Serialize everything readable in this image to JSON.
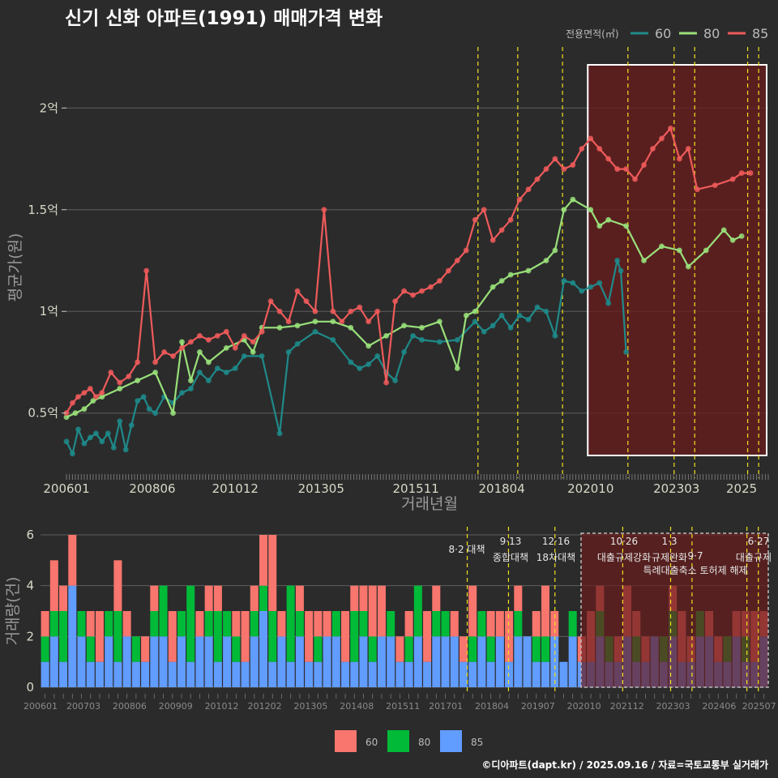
{
  "header": {
    "title": "신기 신화 아파트(1991) 매매가격 변화",
    "credit": "©디아파트(dapt.kr) / 2025.09.16 / 자료=국토교통부 실거래가"
  },
  "colors": {
    "s60_line": "#1f8a8a",
    "s80_line": "#99e07a",
    "s85_line": "#ee5a5a",
    "b60": "#f8766d",
    "b80": "#00ba38",
    "b85": "#619cff",
    "policy_line": "#f0e020",
    "shade": "#6a1c1c"
  },
  "chart_data": [
    {
      "type": "line",
      "title": "신기 신화 아파트(1991) 매매가격 변화",
      "xlabel": "거래년월",
      "ylabel": "평균가(원)",
      "xlim": [
        2006.0,
        2025.75
      ],
      "ylim": [
        0.18,
        2.3
      ],
      "y_ticks": [
        0.5,
        1.0,
        1.5,
        2.0
      ],
      "y_tick_labels": [
        "0.5억",
        "1억",
        "1.5억",
        "2억"
      ],
      "x_ticks": [
        2006.0,
        2008.417,
        2010.75,
        2013.167,
        2015.833,
        2018.25,
        2020.75,
        2023.167,
        2025.0
      ],
      "x_tick_labels": [
        "200601",
        "200806",
        "201012",
        "201305",
        "201511",
        "201804",
        "202010",
        "202303",
        "2025"
      ],
      "legend_title": "전용면적(㎡)",
      "series": [
        {
          "name": "60",
          "x": [
            2006.0,
            2006.17,
            2006.33,
            2006.5,
            2006.67,
            2006.83,
            2007.0,
            2007.17,
            2007.33,
            2007.5,
            2007.67,
            2007.83,
            2008.0,
            2008.17,
            2008.33,
            2008.5,
            2008.75,
            2009.0,
            2009.25,
            2009.5,
            2009.75,
            2010.0,
            2010.25,
            2010.5,
            2010.75,
            2011.0,
            2011.5,
            2012.0,
            2012.25,
            2012.5,
            2013.0,
            2013.5,
            2014.0,
            2014.25,
            2014.5,
            2014.75,
            2015.0,
            2015.25,
            2015.5,
            2015.75,
            2016.0,
            2016.5,
            2017.0,
            2017.5,
            2017.75,
            2018.0,
            2018.25,
            2018.5,
            2018.75,
            2019.0,
            2019.25,
            2019.5,
            2019.75,
            2020.0,
            2020.25,
            2020.5,
            2020.75,
            2021.0,
            2021.25,
            2021.5,
            2021.6,
            2021.75
          ],
          "values": [
            0.36,
            0.3,
            0.42,
            0.35,
            0.38,
            0.4,
            0.36,
            0.4,
            0.33,
            0.46,
            0.32,
            0.44,
            0.56,
            0.58,
            0.52,
            0.5,
            0.58,
            0.55,
            0.6,
            0.62,
            0.7,
            0.66,
            0.72,
            0.7,
            0.72,
            0.78,
            0.78,
            0.4,
            0.8,
            0.84,
            0.9,
            0.86,
            0.75,
            0.72,
            0.74,
            0.78,
            0.7,
            0.66,
            0.8,
            0.88,
            0.86,
            0.85,
            0.86,
            0.95,
            0.9,
            0.93,
            0.98,
            0.92,
            0.98,
            0.96,
            1.02,
            1.0,
            0.88,
            1.15,
            1.14,
            1.1,
            1.12,
            1.14,
            1.04,
            1.25,
            1.2,
            0.8
          ]
        },
        {
          "name": "80",
          "x": [
            2006.0,
            2006.25,
            2006.5,
            2006.75,
            2007.0,
            2007.5,
            2008.0,
            2008.5,
            2009.0,
            2009.25,
            2009.5,
            2009.75,
            2010.0,
            2010.5,
            2011.0,
            2011.25,
            2011.5,
            2012.0,
            2012.5,
            2013.0,
            2013.5,
            2014.0,
            2014.5,
            2015.0,
            2015.5,
            2016.0,
            2016.5,
            2017.0,
            2017.25,
            2017.5,
            2018.0,
            2018.25,
            2018.5,
            2019.0,
            2019.5,
            2019.75,
            2020.0,
            2020.25,
            2020.75,
            2021.0,
            2021.25,
            2021.75,
            2022.25,
            2022.75,
            2023.25,
            2023.5,
            2024.0,
            2024.5,
            2024.75,
            2025.0
          ],
          "values": [
            0.48,
            0.5,
            0.52,
            0.56,
            0.58,
            0.62,
            0.66,
            0.7,
            0.5,
            0.85,
            0.66,
            0.8,
            0.75,
            0.82,
            0.86,
            0.8,
            0.92,
            0.92,
            0.93,
            0.95,
            0.95,
            0.92,
            0.83,
            0.88,
            0.93,
            0.92,
            0.95,
            0.72,
            0.98,
            1.0,
            1.12,
            1.15,
            1.18,
            1.2,
            1.25,
            1.3,
            1.5,
            1.55,
            1.5,
            1.42,
            1.45,
            1.42,
            1.25,
            1.32,
            1.3,
            1.22,
            1.3,
            1.4,
            1.35,
            1.37
          ]
        },
        {
          "name": "85",
          "x": [
            2006.0,
            2006.17,
            2006.33,
            2006.5,
            2006.67,
            2006.83,
            2007.0,
            2007.25,
            2007.5,
            2007.75,
            2008.0,
            2008.25,
            2008.5,
            2008.75,
            2009.0,
            2009.25,
            2009.5,
            2009.75,
            2010.0,
            2010.25,
            2010.5,
            2010.75,
            2011.0,
            2011.25,
            2011.5,
            2011.75,
            2012.0,
            2012.25,
            2012.5,
            2012.75,
            2013.0,
            2013.25,
            2013.5,
            2013.75,
            2014.0,
            2014.25,
            2014.5,
            2014.75,
            2015.0,
            2015.25,
            2015.5,
            2015.75,
            2016.0,
            2016.25,
            2016.5,
            2016.75,
            2017.0,
            2017.25,
            2017.5,
            2017.75,
            2018.0,
            2018.25,
            2018.5,
            2018.75,
            2019.0,
            2019.25,
            2019.5,
            2019.75,
            2020.0,
            2020.25,
            2020.5,
            2020.75,
            2021.0,
            2021.25,
            2021.5,
            2021.75,
            2022.0,
            2022.25,
            2022.5,
            2022.75,
            2023.0,
            2023.25,
            2023.5,
            2023.75,
            2024.25,
            2024.75,
            2025.0,
            2025.25
          ],
          "values": [
            0.5,
            0.55,
            0.58,
            0.6,
            0.62,
            0.58,
            0.6,
            0.7,
            0.65,
            0.68,
            0.75,
            1.2,
            0.75,
            0.8,
            0.78,
            0.82,
            0.85,
            0.88,
            0.86,
            0.88,
            0.9,
            0.82,
            0.88,
            0.85,
            0.9,
            1.05,
            1.0,
            0.95,
            1.1,
            1.05,
            1.0,
            1.5,
            1.0,
            0.95,
            1.0,
            1.02,
            0.95,
            1.0,
            0.65,
            1.05,
            1.1,
            1.08,
            1.1,
            1.12,
            1.15,
            1.2,
            1.25,
            1.3,
            1.45,
            1.5,
            1.35,
            1.4,
            1.45,
            1.55,
            1.6,
            1.65,
            1.7,
            1.75,
            1.7,
            1.72,
            1.8,
            1.85,
            1.8,
            1.75,
            1.7,
            1.7,
            1.65,
            1.72,
            1.8,
            1.85,
            1.9,
            1.75,
            1.8,
            1.6,
            1.62,
            1.65,
            1.68,
            1.68
          ]
        }
      ],
      "policy_lines": [
        2017.58,
        2018.7,
        2019.96,
        2021.8,
        2023.1,
        2023.68,
        2025.17,
        2025.48
      ],
      "highlight_range": [
        2020.67,
        2025.75
      ]
    },
    {
      "type": "bar",
      "stacked": true,
      "ylabel": "거래량(건)",
      "ylim": [
        0,
        6
      ],
      "y_ticks": [
        0,
        2,
        4,
        6
      ],
      "y_tick_labels": [
        "0",
        "2",
        "4",
        "6"
      ],
      "x_tick_labels": [
        "200601",
        "200703",
        "200806",
        "200909",
        "201012",
        "201202",
        "201305",
        "201408",
        "201511",
        "201701",
        "201804",
        "201907",
        "202010",
        "202112",
        "202303",
        "202406",
        "202507"
      ],
      "x_tick_positions": [
        2006.0,
        2007.167,
        2008.417,
        2009.667,
        2010.917,
        2012.083,
        2013.333,
        2014.583,
        2015.833,
        2017.0,
        2018.25,
        2019.5,
        2020.75,
        2021.917,
        2023.167,
        2024.417,
        2025.5
      ],
      "legend": [
        "60",
        "80",
        "85"
      ],
      "series": [
        {
          "name": "85",
          "values": [
            1,
            2,
            1,
            4,
            2,
            1,
            1,
            2,
            1,
            2,
            1,
            1,
            2,
            2,
            1,
            2,
            1,
            2,
            2,
            1,
            2,
            1,
            1,
            2,
            3,
            1,
            2,
            1,
            2,
            1,
            1,
            2,
            2,
            1,
            1,
            2,
            1,
            2,
            2,
            1,
            1,
            2,
            1,
            2,
            2,
            2,
            1,
            1,
            2,
            1,
            2,
            1,
            2,
            2,
            1,
            1,
            2,
            1,
            2,
            1,
            1,
            2,
            1,
            1,
            2,
            1,
            1,
            2,
            1,
            2,
            1,
            1,
            2,
            2,
            1,
            1,
            2,
            1,
            1,
            2
          ]
        },
        {
          "name": "80",
          "values": [
            1,
            1,
            2,
            0,
            1,
            1,
            0,
            1,
            2,
            0,
            1,
            0,
            1,
            2,
            0,
            1,
            3,
            0,
            1,
            2,
            1,
            1,
            0,
            1,
            1,
            2,
            0,
            3,
            1,
            0,
            1,
            0,
            1,
            0,
            2,
            1,
            1,
            0,
            1,
            0,
            1,
            2,
            0,
            1,
            1,
            0,
            0,
            1,
            1,
            1,
            0,
            0,
            1,
            0,
            1,
            1,
            0,
            0,
            1,
            0,
            0,
            1,
            1,
            0,
            0,
            1,
            0,
            0,
            1,
            1,
            0,
            0,
            1,
            0,
            0,
            1,
            0,
            1,
            0,
            0
          ]
        },
        {
          "name": "60",
          "values": [
            1,
            2,
            1,
            2,
            0,
            1,
            2,
            0,
            2,
            1,
            0,
            1,
            1,
            0,
            2,
            0,
            0,
            1,
            1,
            1,
            0,
            1,
            2,
            1,
            2,
            3,
            1,
            0,
            1,
            2,
            1,
            1,
            0,
            2,
            1,
            1,
            2,
            2,
            0,
            1,
            1,
            0,
            2,
            1,
            0,
            1,
            1,
            2,
            0,
            1,
            1,
            2,
            1,
            0,
            1,
            2,
            1,
            0,
            0,
            1,
            2,
            1,
            0,
            1,
            2,
            1,
            1,
            0,
            0,
            1,
            2,
            1,
            0,
            1,
            1,
            0,
            1,
            1,
            2,
            1
          ]
        }
      ],
      "annotations": [
        {
          "date": "8·2 대책",
          "label": ""
        },
        {
          "date": "9·13",
          "label": "종합대책"
        },
        {
          "date": "12·16",
          "label": "18차대책"
        },
        {
          "date": "10·26",
          "label": "대출규제강화"
        },
        {
          "date": "1·3",
          "label": "규제완화"
        },
        {
          "date": "9·7",
          "label": "특례대출축소 토허제 해제"
        },
        {
          "date": "6·27",
          "label": "대출규제"
        }
      ]
    }
  ]
}
